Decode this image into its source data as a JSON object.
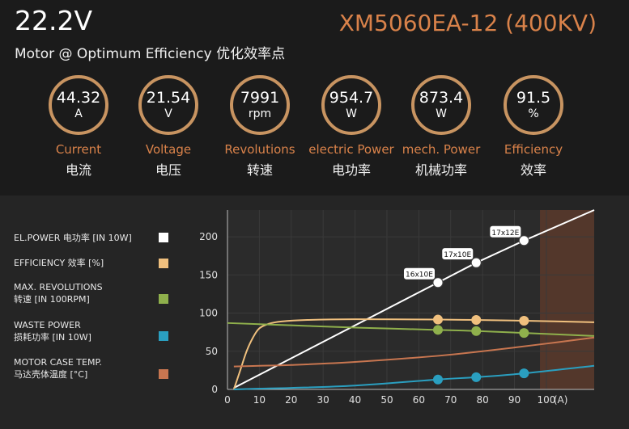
{
  "header": {
    "voltage": "22.2V",
    "subtitle": "Motor @ Optimum Efficiency  优化效率点",
    "model": "XM5060EA-12 (400KV)"
  },
  "gauges": [
    {
      "value": "44.32",
      "unit": "A",
      "label": "Current",
      "label_cn": "电流"
    },
    {
      "value": "21.54",
      "unit": "V",
      "label": "Voltage",
      "label_cn": "电压"
    },
    {
      "value": "7991",
      "unit": "rpm",
      "label": "Revolutions",
      "label_cn": "转速"
    },
    {
      "value": "954.7",
      "unit": "W",
      "label": "electric Power",
      "label_cn": "电功率"
    },
    {
      "value": "873.4",
      "unit": "W",
      "label": "mech. Power",
      "label_cn": "机械功率"
    },
    {
      "value": "91.5",
      "unit": "%",
      "label": "Efficiency",
      "label_cn": "效率"
    }
  ],
  "legend": [
    {
      "line1": "EL.POWER 电功率 [IN 10W]",
      "line2": "",
      "color": "#ffffff"
    },
    {
      "line1": "EFFICIENCY 效率 [%]",
      "line2": "",
      "color": "#f0c07e"
    },
    {
      "line1": "MAX. REVOLUTIONS",
      "line2": "转速 [IN 100RPM]",
      "color": "#8fb04c"
    },
    {
      "line1": "WASTE POWER",
      "line2": "损耗功率 [IN 10W]",
      "color": "#2a9fc0"
    },
    {
      "line1": "MOTOR CASE TEMP.",
      "line2": "马达壳体温度 [°C]",
      "color": "#c87650"
    }
  ],
  "chart_data": {
    "type": "line",
    "xlabel": "(A)",
    "xlim": [
      0,
      115
    ],
    "ylim": [
      0,
      235
    ],
    "xticks": [
      0,
      10,
      20,
      30,
      40,
      50,
      60,
      70,
      80,
      90,
      100
    ],
    "yticks": [
      0,
      50,
      100,
      150,
      200
    ],
    "overload_region_start_x": 98,
    "series": [
      {
        "key": "el_power",
        "color": "#ffffff",
        "x": [
          2,
          66,
          78,
          93,
          115
        ],
        "y": [
          2,
          140,
          166,
          195,
          235
        ]
      },
      {
        "key": "efficiency",
        "color": "#f0c07e",
        "x": [
          2,
          4,
          6,
          8,
          10,
          13,
          17,
          25,
          40,
          66,
          78,
          93,
          115
        ],
        "y": [
          0,
          25,
          50,
          68,
          80,
          86,
          89,
          91,
          92,
          91.5,
          91,
          90,
          88
        ]
      },
      {
        "key": "revolutions",
        "color": "#8fb04c",
        "x": [
          0,
          20,
          40,
          66,
          78,
          93,
          115
        ],
        "y": [
          87,
          84,
          81,
          78,
          76.5,
          74,
          70
        ]
      },
      {
        "key": "waste_power",
        "color": "#2a9fc0",
        "x": [
          2,
          10,
          20,
          40,
          66,
          78,
          93,
          115
        ],
        "y": [
          0,
          1,
          2,
          5,
          13,
          16,
          21,
          31
        ]
      },
      {
        "key": "case_temp",
        "color": "#c87650",
        "x": [
          2,
          10,
          20,
          40,
          66,
          80,
          100,
          115
        ],
        "y": [
          30,
          31,
          32,
          36,
          44,
          50,
          60,
          68
        ]
      }
    ],
    "markers": [
      {
        "series": "el_power",
        "x": 66,
        "y": 140,
        "label": "16x10E"
      },
      {
        "series": "el_power",
        "x": 78,
        "y": 166,
        "label": "17x10E"
      },
      {
        "series": "el_power",
        "x": 93,
        "y": 195,
        "label": "17x12E"
      },
      {
        "series": "efficiency",
        "x": 66,
        "y": 91.5,
        "label": ""
      },
      {
        "series": "efficiency",
        "x": 78,
        "y": 91,
        "label": ""
      },
      {
        "series": "efficiency",
        "x": 93,
        "y": 90,
        "label": ""
      },
      {
        "series": "revolutions",
        "x": 66,
        "y": 78,
        "label": ""
      },
      {
        "series": "revolutions",
        "x": 78,
        "y": 76.5,
        "label": ""
      },
      {
        "series": "revolutions",
        "x": 93,
        "y": 74,
        "label": ""
      },
      {
        "series": "waste_power",
        "x": 66,
        "y": 13,
        "label": ""
      },
      {
        "series": "waste_power",
        "x": 78,
        "y": 16,
        "label": ""
      },
      {
        "series": "waste_power",
        "x": 93,
        "y": 21,
        "label": ""
      }
    ]
  }
}
